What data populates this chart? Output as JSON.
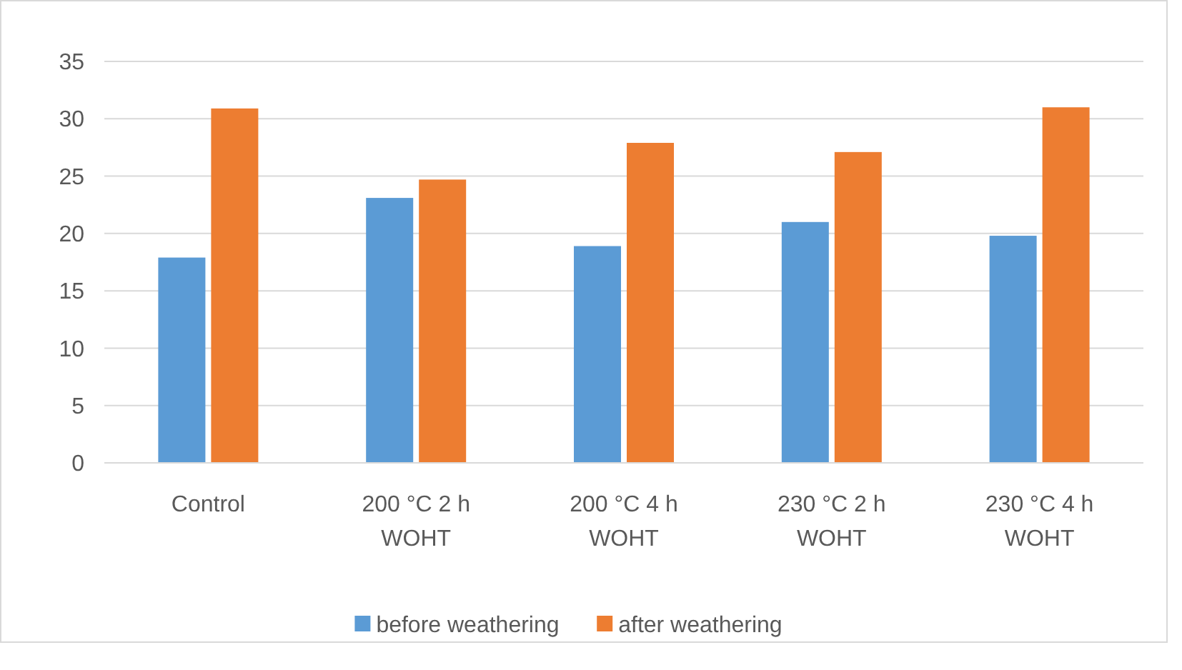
{
  "chart_data": {
    "type": "bar",
    "categories": [
      "Control",
      "200 °C 2 h WOHT",
      "200 °C 4 h WOHT",
      "230 °C 2 h WOHT",
      "230 °C 4 h WOHT"
    ],
    "series": [
      {
        "name": "before weathering",
        "color": "#5b9bd5",
        "values": [
          17.9,
          23.1,
          18.9,
          21.0,
          19.8
        ]
      },
      {
        "name": "after weathering",
        "color": "#ed7d31",
        "values": [
          30.9,
          24.7,
          27.9,
          27.1,
          31.0
        ]
      }
    ],
    "ylim": [
      0,
      35
    ],
    "yticks": [
      0,
      5,
      10,
      15,
      20,
      25,
      30,
      35
    ],
    "grid": "y",
    "legend": "bottom"
  }
}
